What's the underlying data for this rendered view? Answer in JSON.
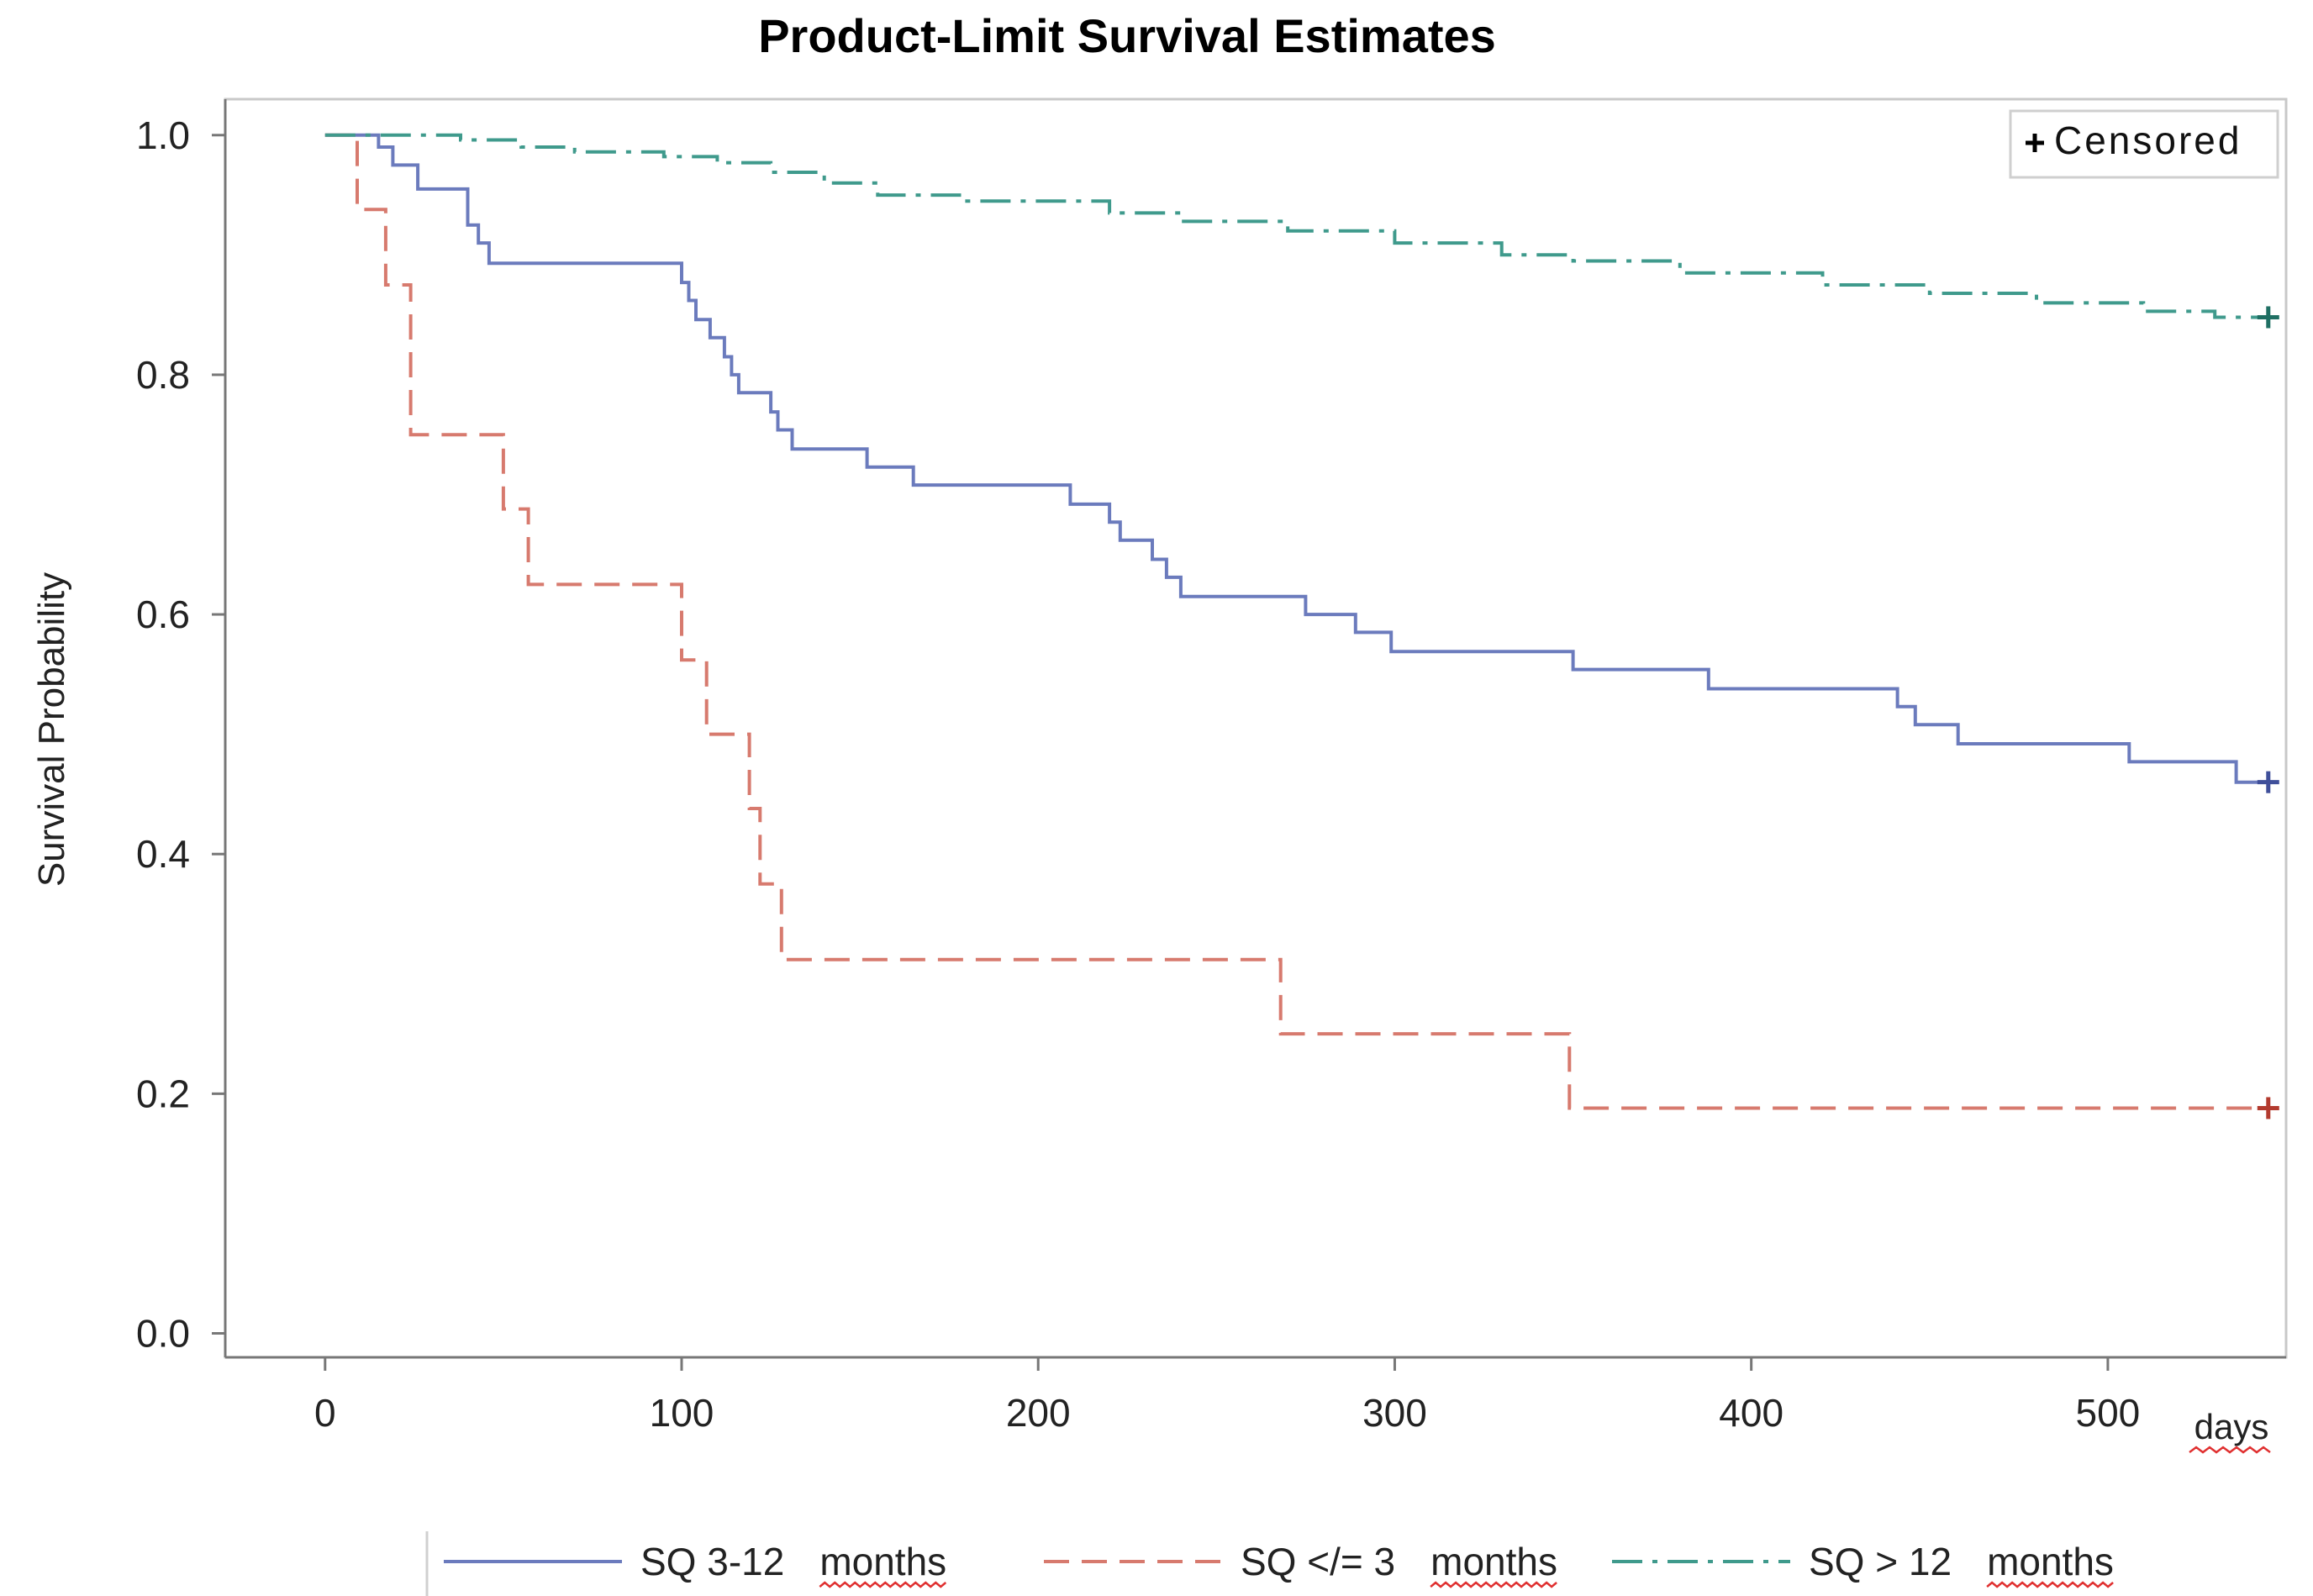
{
  "chart_data": {
    "type": "line",
    "step": true,
    "title": "Product-Limit Survival Estimates",
    "xlabel": "days",
    "ylabel": "Survival Probability",
    "xlim": [
      -28,
      550
    ],
    "ylim": [
      -0.02,
      1.03
    ],
    "x_ticks": [
      {
        "value": 0,
        "label": "0"
      },
      {
        "value": 100,
        "label": "100"
      },
      {
        "value": 200,
        "label": "200"
      },
      {
        "value": 300,
        "label": "300"
      },
      {
        "value": 400,
        "label": "400"
      },
      {
        "value": 500,
        "label": "500"
      }
    ],
    "y_ticks": [
      {
        "value": 0.0,
        "label": "0.0"
      },
      {
        "value": 0.2,
        "label": "0.2"
      },
      {
        "value": 0.4,
        "label": "0.4"
      },
      {
        "value": 0.6,
        "label": "0.6"
      },
      {
        "value": 0.8,
        "label": "0.8"
      },
      {
        "value": 1.0,
        "label": "1.0"
      }
    ],
    "censored_legend": "Censored",
    "legend_position": "top-right",
    "series": [
      {
        "name": "SQ 3-12 months",
        "legend_parts": [
          "SQ 3-12",
          "months"
        ],
        "color": "#6b7bbd",
        "dash": "",
        "censor_color": "#3f4f9a",
        "censored": [
          {
            "x": 545,
            "y": 0.46
          }
        ],
        "points": [
          [
            0,
            1.0
          ],
          [
            15,
            0.99
          ],
          [
            19,
            0.975
          ],
          [
            26,
            0.955
          ],
          [
            40,
            0.925
          ],
          [
            43,
            0.91
          ],
          [
            46,
            0.893
          ],
          [
            100,
            0.877
          ],
          [
            102,
            0.862
          ],
          [
            104,
            0.846
          ],
          [
            108,
            0.831
          ],
          [
            112,
            0.815
          ],
          [
            114,
            0.8
          ],
          [
            116,
            0.785
          ],
          [
            125,
            0.769
          ],
          [
            127,
            0.754
          ],
          [
            131,
            0.738
          ],
          [
            152,
            0.723
          ],
          [
            165,
            0.708
          ],
          [
            209,
            0.692
          ],
          [
            220,
            0.677
          ],
          [
            223,
            0.662
          ],
          [
            232,
            0.646
          ],
          [
            236,
            0.631
          ],
          [
            240,
            0.615
          ],
          [
            275,
            0.6
          ],
          [
            289,
            0.585
          ],
          [
            299,
            0.569
          ],
          [
            350,
            0.554
          ],
          [
            388,
            0.538
          ],
          [
            441,
            0.523
          ],
          [
            446,
            0.508
          ],
          [
            458,
            0.492
          ],
          [
            506,
            0.477
          ],
          [
            536,
            0.46
          ],
          [
            545,
            0.46
          ]
        ]
      },
      {
        "name": "SQ </= 3 months",
        "legend_parts": [
          "SQ </= 3",
          "months"
        ],
        "color": "#d77a6e",
        "dash": "30,15",
        "censor_color": "#b33a2e",
        "censored": [
          {
            "x": 545,
            "y": 0.188
          }
        ],
        "points": [
          [
            0,
            1.0
          ],
          [
            9,
            0.938
          ],
          [
            17,
            0.875
          ],
          [
            24,
            0.75
          ],
          [
            50,
            0.688
          ],
          [
            57,
            0.625
          ],
          [
            100,
            0.562
          ],
          [
            107,
            0.5
          ],
          [
            119,
            0.438
          ],
          [
            122,
            0.375
          ],
          [
            128,
            0.312
          ],
          [
            268,
            0.25
          ],
          [
            349,
            0.188
          ],
          [
            545,
            0.188
          ]
        ]
      },
      {
        "name": "SQ > 12 months",
        "legend_parts": [
          "SQ > 12",
          "months"
        ],
        "color": "#3f9a8c",
        "dash": "36,12,6,12",
        "censor_color": "#1f6f63",
        "censored": [
          {
            "x": 545,
            "y": 0.848
          }
        ],
        "points": [
          [
            0,
            1.0
          ],
          [
            38,
            0.996
          ],
          [
            55,
            0.99
          ],
          [
            70,
            0.986
          ],
          [
            95,
            0.982
          ],
          [
            110,
            0.977
          ],
          [
            125,
            0.969
          ],
          [
            140,
            0.96
          ],
          [
            155,
            0.95
          ],
          [
            180,
            0.945
          ],
          [
            220,
            0.935
          ],
          [
            240,
            0.928
          ],
          [
            270,
            0.92
          ],
          [
            300,
            0.91
          ],
          [
            330,
            0.9
          ],
          [
            350,
            0.895
          ],
          [
            380,
            0.885
          ],
          [
            420,
            0.875
          ],
          [
            450,
            0.868
          ],
          [
            480,
            0.86
          ],
          [
            510,
            0.853
          ],
          [
            530,
            0.848
          ],
          [
            545,
            0.848
          ]
        ]
      }
    ]
  }
}
